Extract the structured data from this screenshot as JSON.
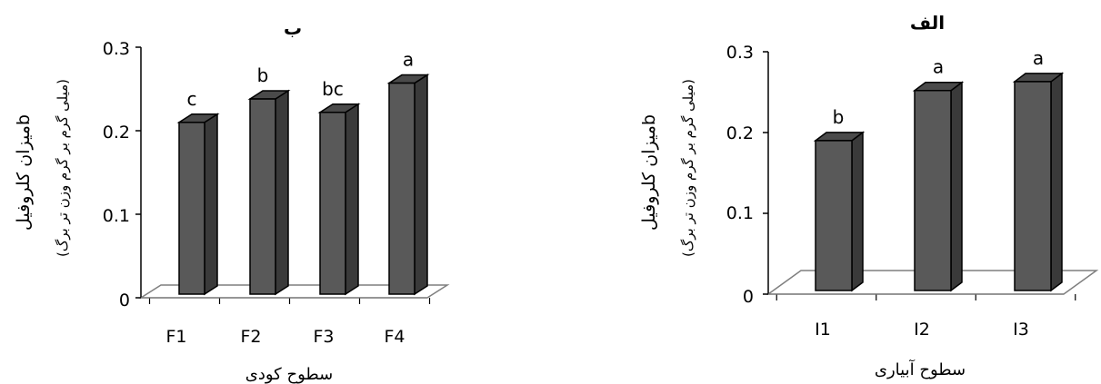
{
  "chart_data": [
    {
      "type": "bar",
      "title": "ب",
      "categories": [
        "F1",
        "F2",
        "F3",
        "F4"
      ],
      "values": [
        0.21,
        0.238,
        0.222,
        0.257
      ],
      "labels": [
        "c",
        "b",
        "bc",
        "a"
      ],
      "xlabel": "سطوح کودی",
      "ylabel": "میزان کلروفیلb",
      "ylabel_unit": "(میلی گرم بر گرم وزن تر برگ)",
      "yticks": [
        "0",
        "0.1",
        "0.2",
        "0.3"
      ],
      "ylim": [
        0,
        0.3
      ],
      "grid": false,
      "bar_color": "#595959"
    },
    {
      "type": "bar",
      "title": "الف",
      "categories": [
        "I1",
        "I2",
        "I3"
      ],
      "values": [
        0.19,
        0.252,
        0.263
      ],
      "labels": [
        "b",
        "a",
        "a"
      ],
      "xlabel": "سطوح آبیاری",
      "ylabel": "میزان کلروفیلb",
      "ylabel_unit": "(میلی گرم بر گرم وزن تر برگ)",
      "yticks": [
        "0",
        "0.1",
        "0.2",
        "0.3"
      ],
      "ylim": [
        0,
        0.3
      ],
      "grid": false,
      "bar_color": "#595959"
    }
  ]
}
